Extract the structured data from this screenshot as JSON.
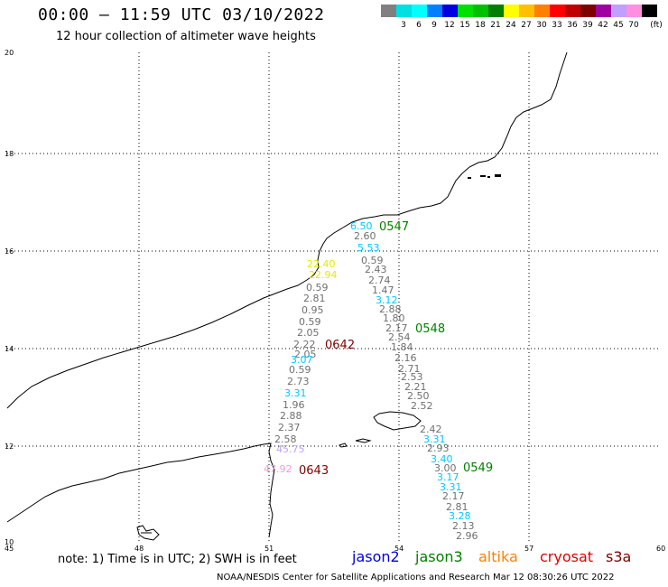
{
  "header": {
    "title": "00:00 – 11:59 UTC 03/10/2022",
    "subtitle": "12 hour collection of altimeter wave heights"
  },
  "legend": {
    "unit": "(ft)",
    "bins": [
      {
        "label": "",
        "color": "#808080"
      },
      {
        "label": "3",
        "color": "#00e0e0"
      },
      {
        "label": "6",
        "color": "#00ffff"
      },
      {
        "label": "9",
        "color": "#0080ff"
      },
      {
        "label": "12",
        "color": "#0000e0"
      },
      {
        "label": "15",
        "color": "#00e000"
      },
      {
        "label": "18",
        "color": "#00c000"
      },
      {
        "label": "21",
        "color": "#008000"
      },
      {
        "label": "24",
        "color": "#ffff00"
      },
      {
        "label": "27",
        "color": "#ffc000"
      },
      {
        "label": "30",
        "color": "#ff8000"
      },
      {
        "label": "33",
        "color": "#ff0000"
      },
      {
        "label": "36",
        "color": "#c00000"
      },
      {
        "label": "39",
        "color": "#800000"
      },
      {
        "label": "42",
        "color": "#a000a0"
      },
      {
        "label": "45",
        "color": "#c0a0ff"
      },
      {
        "label": "70",
        "color": "#ff90e0"
      },
      {
        "label": "",
        "color": "#000000"
      }
    ]
  },
  "map": {
    "y_ticks": [
      "20",
      "18",
      "16",
      "14",
      "12",
      "10"
    ],
    "x_ticks": [
      "45",
      "48",
      "51",
      "54",
      "57",
      "60"
    ],
    "pass_times": [
      {
        "label": "0547",
        "color": "#008000"
      },
      {
        "label": "0548",
        "color": "#008000"
      },
      {
        "label": "0549",
        "color": "#008000"
      },
      {
        "label": "0642",
        "color": "#800000"
      },
      {
        "label": "0643",
        "color": "#800000"
      }
    ],
    "wave_heights": [
      {
        "v": "6.50",
        "c": "#00c8ff"
      },
      {
        "v": "2.60",
        "c": "#707070"
      },
      {
        "v": "5.53",
        "c": "#00c8ff"
      },
      {
        "v": "0.59",
        "c": "#707070"
      },
      {
        "v": "2.43",
        "c": "#707070"
      },
      {
        "v": "2.74",
        "c": "#707070"
      },
      {
        "v": "1.47",
        "c": "#707070"
      },
      {
        "v": "3.12",
        "c": "#00c8ff"
      },
      {
        "v": "2.88",
        "c": "#707070"
      },
      {
        "v": "1.80",
        "c": "#707070"
      },
      {
        "v": "2.17",
        "c": "#707070"
      },
      {
        "v": "2.54",
        "c": "#707070"
      },
      {
        "v": "1.84",
        "c": "#707070"
      },
      {
        "v": "2.16",
        "c": "#707070"
      },
      {
        "v": "2.71",
        "c": "#707070"
      },
      {
        "v": "2.53",
        "c": "#707070"
      },
      {
        "v": "2.21",
        "c": "#707070"
      },
      {
        "v": "2.50",
        "c": "#707070"
      },
      {
        "v": "2.52",
        "c": "#707070"
      },
      {
        "v": "2.42",
        "c": "#707070"
      },
      {
        "v": "3.31",
        "c": "#00c8ff"
      },
      {
        "v": "2.93",
        "c": "#707070"
      },
      {
        "v": "3.40",
        "c": "#00c8ff"
      },
      {
        "v": "3.00",
        "c": "#707070"
      },
      {
        "v": "3.17",
        "c": "#00c8ff"
      },
      {
        "v": "3.31",
        "c": "#00c8ff"
      },
      {
        "v": "2.17",
        "c": "#707070"
      },
      {
        "v": "2.81",
        "c": "#707070"
      },
      {
        "v": "3.28",
        "c": "#00c8ff"
      },
      {
        "v": "2.13",
        "c": "#707070"
      },
      {
        "v": "2.96",
        "c": "#707070"
      },
      {
        "v": "22.40",
        "c": "#e8e800"
      },
      {
        "v": "22.94",
        "c": "#e8e800"
      },
      {
        "v": "0.59",
        "c": "#707070"
      },
      {
        "v": "2.81",
        "c": "#707070"
      },
      {
        "v": "0.95",
        "c": "#707070"
      },
      {
        "v": "0.59",
        "c": "#707070"
      },
      {
        "v": "2.05",
        "c": "#707070"
      },
      {
        "v": "2.22",
        "c": "#707070"
      },
      {
        "v": "2.05",
        "c": "#707070"
      },
      {
        "v": "3.07",
        "c": "#00c8ff"
      },
      {
        "v": "0.59",
        "c": "#707070"
      },
      {
        "v": "2.73",
        "c": "#707070"
      },
      {
        "v": "3.31",
        "c": "#00c8ff"
      },
      {
        "v": "1.96",
        "c": "#707070"
      },
      {
        "v": "2.88",
        "c": "#707070"
      },
      {
        "v": "2.37",
        "c": "#707070"
      },
      {
        "v": "2.58",
        "c": "#707070"
      },
      {
        "v": "45.75",
        "c": "#c0a0ff"
      },
      {
        "v": "47.92",
        "c": "#ff90e0"
      }
    ]
  },
  "footer": {
    "note": "note: 1) Time is in UTC; 2) SWH is in feet",
    "satellites": [
      {
        "name": "jason2",
        "color": "#0000e0"
      },
      {
        "name": "jason3",
        "color": "#008000"
      },
      {
        "name": "altika",
        "color": "#ff8000"
      },
      {
        "name": "cryosat",
        "color": "#e00000"
      },
      {
        "name": "s3a",
        "color": "#800000"
      }
    ],
    "credit": "NOAA/NESDIS Center for Satellite Applications and Research    Mar 12 08:30:26 UTC 2022"
  }
}
